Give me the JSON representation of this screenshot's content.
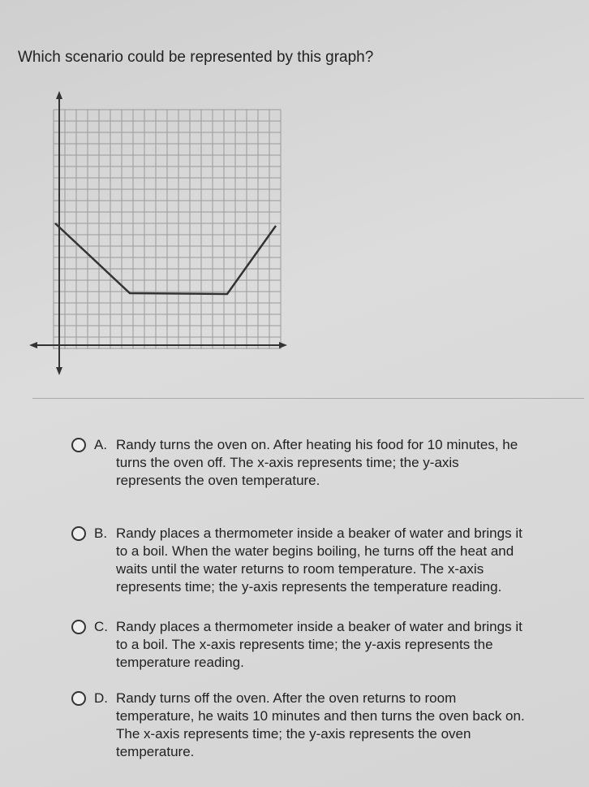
{
  "question": "Which scenario could be represented by this graph?",
  "options": [
    {
      "letter": "A.",
      "lines": [
        "Randy turns the oven on. After heating his food for 10 minutes, he",
        "turns the oven off. The x-axis represents time; the y-axis",
        "represents the oven temperature."
      ]
    },
    {
      "letter": "B.",
      "lines": [
        "Randy places a thermometer inside a beaker of water and brings it",
        "to a boil. When the water begins boiling, he turns off the heat and",
        "waits until the water returns to room temperature. The x-axis",
        "represents time; the y-axis represents the temperature reading."
      ]
    },
    {
      "letter": "C.",
      "lines": [
        "Randy places a thermometer inside a beaker of water and brings it",
        "to a boil. The x-axis represents time; the y-axis represents the",
        "temperature reading."
      ]
    },
    {
      "letter": "D.",
      "lines": [
        "Randy turns off the oven. After the oven returns to room",
        "temperature, he waits 10 minutes and then turns the oven back on.",
        "The x-axis represents time; the y-axis represents the oven",
        "temperature."
      ]
    }
  ]
}
